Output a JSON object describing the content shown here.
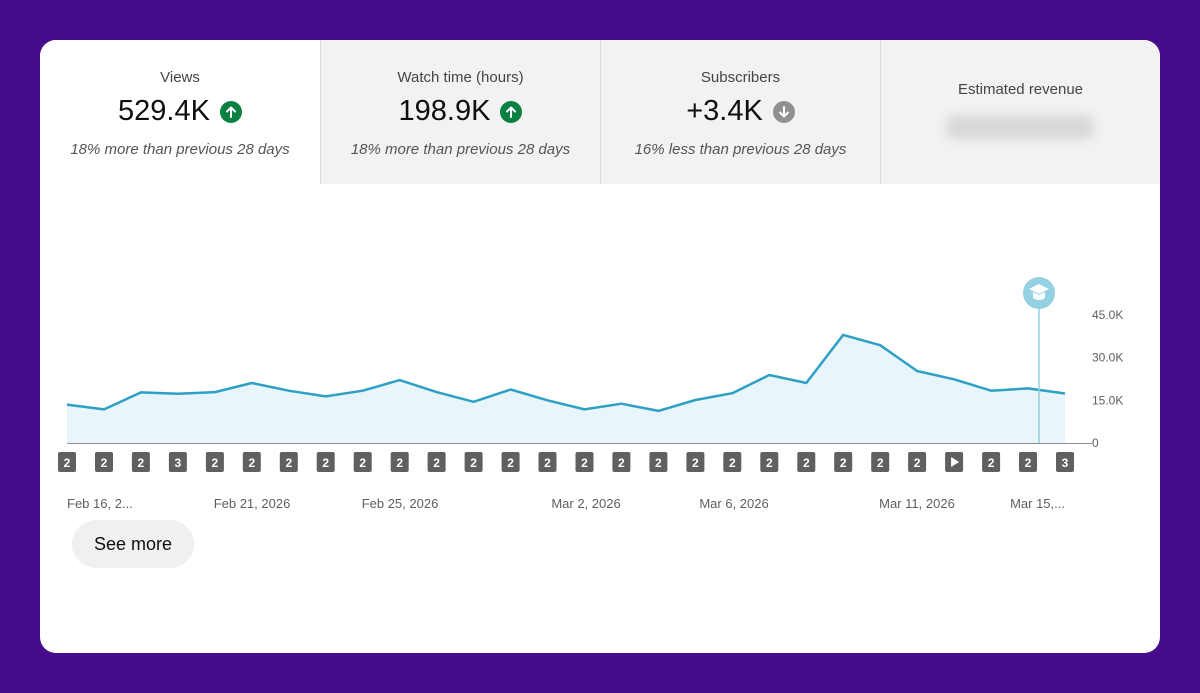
{
  "metrics": [
    {
      "label": "Views",
      "value": "529.4K",
      "trend": "up",
      "compare": "18% more than previous 28 days"
    },
    {
      "label": "Watch time (hours)",
      "value": "198.9K",
      "trend": "up",
      "compare": "18% more than previous 28 days"
    },
    {
      "label": "Subscribers",
      "value": "+3.4K",
      "trend": "down",
      "compare": "16% less than previous 28 days"
    }
  ],
  "revenue": {
    "label": "Estimated revenue"
  },
  "chart_data": {
    "type": "area",
    "series": [
      {
        "name": "Views",
        "values": [
          13.5,
          11.8,
          17.8,
          17.3,
          17.9,
          21.1,
          18.4,
          16.4,
          18.4,
          22.1,
          17.9,
          14.5,
          18.8,
          15.0,
          11.8,
          13.8,
          11.3,
          15.1,
          17.5,
          23.9,
          21.1,
          38.0,
          34.4,
          25.3,
          22.4,
          18.4,
          19.2,
          17.4
        ]
      }
    ],
    "x_tick_labels": [
      "Feb 16, 2...",
      "Feb 21, 2026",
      "Feb 25, 2026",
      "Mar 2, 2026",
      "Mar 6, 2026",
      "Mar 11, 2026",
      "Mar 15,..."
    ],
    "y_tick_labels": [
      "45.0K",
      "30.0K",
      "15.0K",
      "0"
    ],
    "ylim": [
      0,
      45000
    ],
    "grid": false,
    "upload_markers": [
      "2",
      "2",
      "2",
      "3",
      "2",
      "2",
      "2",
      "2",
      "2",
      "2",
      "2",
      "2",
      "2",
      "2",
      "2",
      "2",
      "2",
      "2",
      "2",
      "2",
      "2",
      "2",
      "2",
      "2",
      "play",
      "2",
      "2",
      "3"
    ],
    "highlight_color": "#94d1e2",
    "line_color": "#2da0c3",
    "fill_color": "#e8f5fa"
  },
  "actions": {
    "see_more": "See more"
  }
}
